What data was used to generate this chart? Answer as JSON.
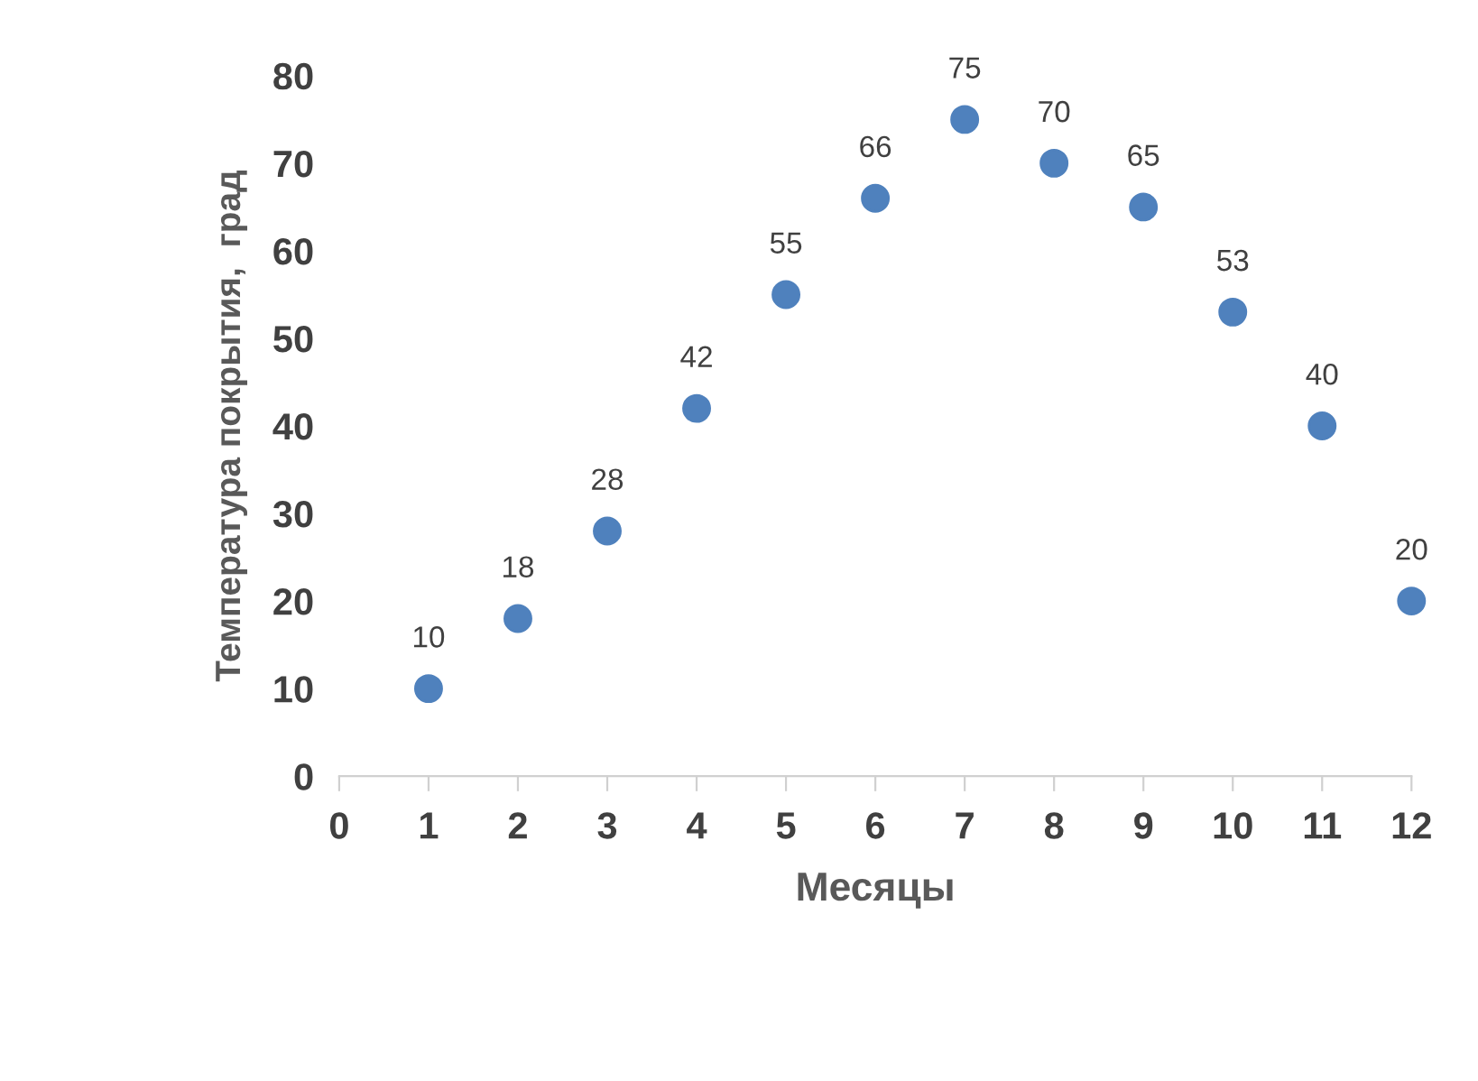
{
  "chart_data": {
    "type": "scatter",
    "xlabel": "Месяцы",
    "ylabel": "Температура покрытия,  град",
    "x": [
      1,
      2,
      3,
      4,
      5,
      6,
      7,
      8,
      9,
      10,
      11,
      12
    ],
    "series": [
      {
        "color": "#4f81bd",
        "values": [
          10,
          18,
          28,
          42,
          55,
          66,
          75,
          70,
          65,
          53,
          40,
          20
        ]
      }
    ],
    "xlim": [
      0,
      12
    ],
    "xticks": [
      0,
      1,
      2,
      3,
      4,
      5,
      6,
      7,
      8,
      9,
      10,
      11,
      12
    ],
    "ylim": [
      0,
      80
    ],
    "yticks": [
      0,
      10,
      20,
      30,
      40,
      50,
      60,
      70,
      80
    ],
    "marker": "circle",
    "data_labels": true,
    "grid": false,
    "legend": false
  }
}
